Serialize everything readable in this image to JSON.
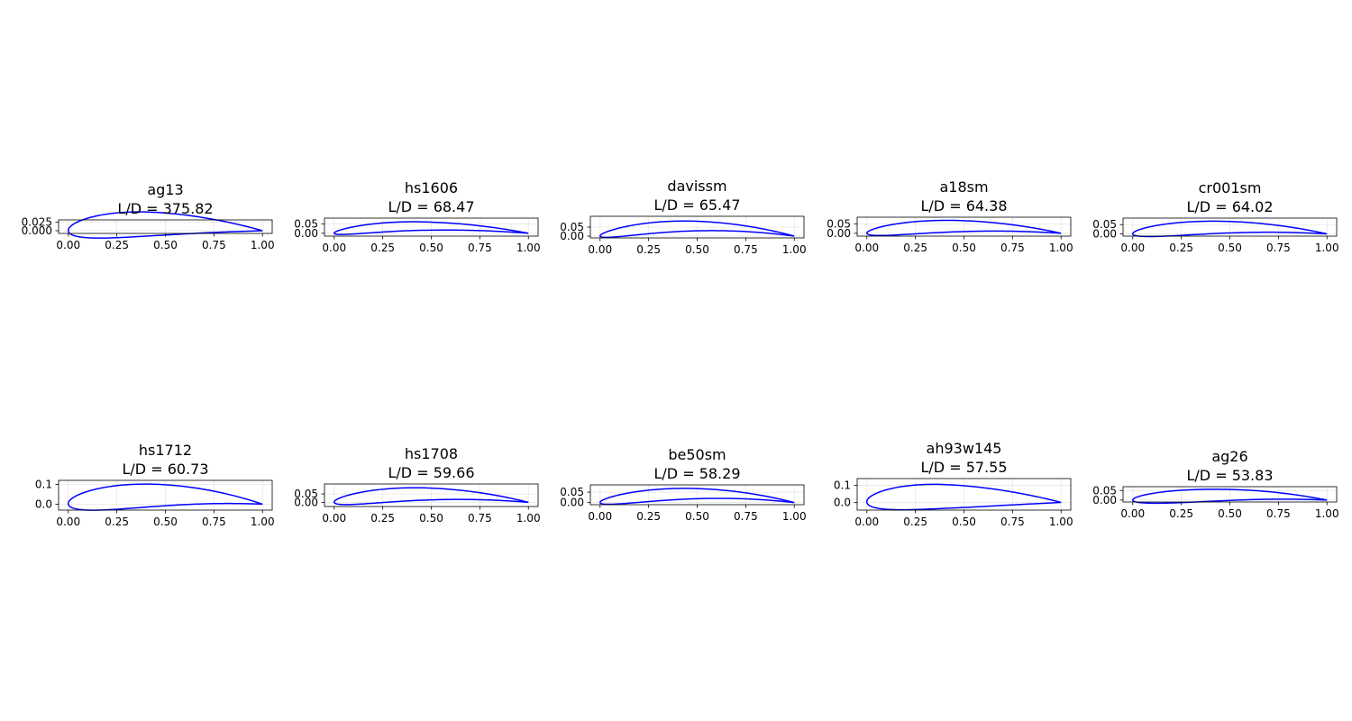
{
  "chart_data": [
    {
      "type": "line",
      "name": "ag13",
      "title_lines": [
        "ag13",
        "L/D = 375.82"
      ],
      "xlim": [
        -0.05,
        1.05
      ],
      "ylim": [
        -0.008,
        0.032
      ],
      "xticks": [
        0,
        0.25,
        0.5,
        0.75,
        1
      ],
      "xtick_labels": [
        "0.00",
        "0.25",
        "0.50",
        "0.75",
        "1.00"
      ],
      "yticks": [
        0,
        0.025
      ],
      "ytick_labels": [
        "0.000",
        "0.025"
      ],
      "grid": true,
      "color": "#0000ff",
      "shape": {
        "tmax": 0.074,
        "xt": 0.27,
        "camber": 0.02,
        "xc": 0.45,
        "te_y": 0.0
      }
    },
    {
      "type": "line",
      "name": "hs1606",
      "title_lines": [
        "hs1606",
        "L/D = 68.47"
      ],
      "xlim": [
        -0.05,
        1.05
      ],
      "ylim": [
        -0.015,
        0.08
      ],
      "xticks": [
        0,
        0.25,
        0.5,
        0.75,
        1
      ],
      "xtick_labels": [
        "0.00",
        "0.25",
        "0.50",
        "0.75",
        "1.00"
      ],
      "yticks": [
        0,
        0.05
      ],
      "ytick_labels": [
        "0.00",
        "0.05"
      ],
      "grid": true,
      "color": "#0000ff",
      "shape": {
        "tmax": 0.048,
        "xt": 0.3,
        "camber": 0.038,
        "xc": 0.45,
        "te_y": 0.0
      }
    },
    {
      "type": "line",
      "name": "davissm",
      "title_lines": [
        "davissm",
        "L/D = 65.47"
      ],
      "xlim": [
        -0.05,
        1.05
      ],
      "ylim": [
        -0.01,
        0.11
      ],
      "xticks": [
        0,
        0.25,
        0.5,
        0.75,
        1
      ],
      "xtick_labels": [
        "0.00",
        "0.25",
        "0.50",
        "0.75",
        "1.00"
      ],
      "yticks": [
        0,
        0.05
      ],
      "ytick_labels": [
        "0.00",
        "0.05"
      ],
      "grid": true,
      "color": "#0000ff",
      "shape": {
        "tmax": 0.06,
        "xt": 0.35,
        "camber": 0.056,
        "xc": 0.48,
        "te_y": 0.0
      }
    },
    {
      "type": "line",
      "name": "a18sm",
      "title_lines": [
        "a18sm",
        "L/D = 64.38"
      ],
      "xlim": [
        -0.05,
        1.05
      ],
      "ylim": [
        -0.015,
        0.085
      ],
      "xticks": [
        0,
        0.25,
        0.5,
        0.75,
        1
      ],
      "xtick_labels": [
        "0.00",
        "0.25",
        "0.50",
        "0.75",
        "1.00"
      ],
      "yticks": [
        0,
        0.05
      ],
      "ytick_labels": [
        "0.00",
        "0.05"
      ],
      "grid": true,
      "color": "#0000ff",
      "shape": {
        "tmax": 0.065,
        "xt": 0.3,
        "camber": 0.038,
        "xc": 0.48,
        "te_y": 0.0
      }
    },
    {
      "type": "line",
      "name": "cr001sm",
      "title_lines": [
        "cr001sm",
        "L/D = 64.02"
      ],
      "xlim": [
        -0.05,
        1.05
      ],
      "ylim": [
        -0.012,
        0.085
      ],
      "xticks": [
        0,
        0.25,
        0.5,
        0.75,
        1
      ],
      "xtick_labels": [
        "0.00",
        "0.25",
        "0.50",
        "0.75",
        "1.00"
      ],
      "yticks": [
        0,
        0.05
      ],
      "ytick_labels": [
        "0.00",
        "0.05"
      ],
      "grid": true,
      "color": "#0000ff",
      "shape": {
        "tmax": 0.07,
        "xt": 0.28,
        "camber": 0.036,
        "xc": 0.5,
        "te_y": 0.0
      }
    },
    {
      "type": "line",
      "name": "hs1712",
      "title_lines": [
        "hs1712",
        "L/D = 60.73"
      ],
      "xlim": [
        -0.05,
        1.05
      ],
      "ylim": [
        -0.03,
        0.12
      ],
      "xticks": [
        0,
        0.25,
        0.5,
        0.75,
        1
      ],
      "xtick_labels": [
        "0.00",
        "0.25",
        "0.50",
        "0.75",
        "1.00"
      ],
      "yticks": [
        0,
        0.1
      ],
      "ytick_labels": [
        "0.0",
        "0.1"
      ],
      "grid": true,
      "color": "#0000ff",
      "shape": {
        "tmax": 0.12,
        "xt": 0.3,
        "camber": 0.045,
        "xc": 0.5,
        "te_y": 0.0
      }
    },
    {
      "type": "line",
      "name": "hs1708",
      "title_lines": [
        "hs1708",
        "L/D = 59.66"
      ],
      "xlim": [
        -0.05,
        1.05
      ],
      "ylim": [
        -0.025,
        0.11
      ],
      "xticks": [
        0,
        0.25,
        0.5,
        0.75,
        1
      ],
      "xtick_labels": [
        "0.00",
        "0.25",
        "0.50",
        "0.75",
        "1.00"
      ],
      "yticks": [
        0,
        0.05
      ],
      "ytick_labels": [
        "0.00",
        "0.05"
      ],
      "grid": true,
      "color": "#0000ff",
      "shape": {
        "tmax": 0.08,
        "xt": 0.3,
        "camber": 0.05,
        "xc": 0.48,
        "te_y": 0.0
      }
    },
    {
      "type": "line",
      "name": "be50sm",
      "title_lines": [
        "be50sm",
        "L/D = 58.29"
      ],
      "xlim": [
        -0.05,
        1.05
      ],
      "ylim": [
        -0.01,
        0.085
      ],
      "xticks": [
        0,
        0.25,
        0.5,
        0.75,
        1
      ],
      "xtick_labels": [
        "0.00",
        "0.25",
        "0.50",
        "0.75",
        "1.00"
      ],
      "yticks": [
        0,
        0.05
      ],
      "ytick_labels": [
        "0.00",
        "0.05"
      ],
      "grid": true,
      "color": "#0000ff",
      "shape": {
        "tmax": 0.055,
        "xt": 0.25,
        "camber": 0.043,
        "xc": 0.5,
        "te_y": 0.0
      }
    },
    {
      "type": "line",
      "name": "ah93w145",
      "title_lines": [
        "ah93w145",
        "L/D = 57.55"
      ],
      "xlim": [
        -0.05,
        1.05
      ],
      "ylim": [
        -0.045,
        0.14
      ],
      "xticks": [
        0,
        0.25,
        0.5,
        0.75,
        1
      ],
      "xtick_labels": [
        "0.00",
        "0.25",
        "0.50",
        "0.75",
        "1.00"
      ],
      "yticks": [
        0,
        0.1
      ],
      "ytick_labels": [
        "0.0",
        "0.1"
      ],
      "grid": true,
      "color": "#0000ff",
      "shape": {
        "tmax": 0.145,
        "xt": 0.28,
        "camber": 0.035,
        "xc": 0.4,
        "te_y": 0.0
      }
    },
    {
      "type": "line",
      "name": "ag26",
      "title_lines": [
        "ag26",
        "L/D = 53.83"
      ],
      "xlim": [
        -0.05,
        1.05
      ],
      "ylim": [
        -0.01,
        0.07
      ],
      "xticks": [
        0,
        0.25,
        0.5,
        0.75,
        1
      ],
      "xtick_labels": [
        "0.00",
        "0.25",
        "0.50",
        "0.75",
        "1.00"
      ],
      "yticks": [
        0,
        0.05
      ],
      "ytick_labels": [
        "0.00",
        "0.05"
      ],
      "grid": true,
      "color": "#0000ff",
      "shape": {
        "tmax": 0.065,
        "xt": 0.25,
        "camber": 0.027,
        "xc": 0.55,
        "te_y": 0.0
      }
    }
  ]
}
